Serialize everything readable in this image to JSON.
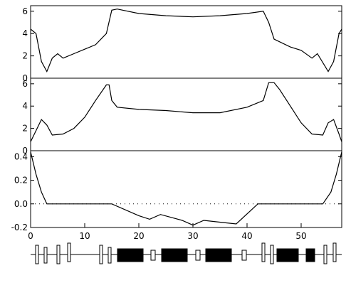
{
  "chart_data": [
    {
      "type": "line",
      "x": [
        0,
        1,
        2,
        3,
        4,
        5,
        6,
        8,
        10,
        12,
        14,
        15,
        16,
        20,
        25,
        30,
        35,
        40,
        43,
        44,
        45,
        48,
        50,
        52,
        53,
        55,
        56,
        57,
        57.5
      ],
      "values": [
        4.4,
        4,
        1.5,
        0.6,
        1.8,
        2.2,
        1.8,
        2.2,
        2.6,
        3,
        4,
        6.1,
        6.2,
        5.8,
        5.6,
        5.5,
        5.6,
        5.8,
        6,
        5,
        3.5,
        2.8,
        2.5,
        1.8,
        2.2,
        0.6,
        1.5,
        4,
        4.4
      ],
      "xlim": [
        0,
        57.5
      ],
      "ylim": [
        0,
        6.5
      ],
      "yticks": [
        0,
        2,
        4,
        6
      ],
      "color": "#000000"
    },
    {
      "type": "line",
      "x": [
        0,
        2,
        3,
        4,
        6,
        8,
        10,
        12,
        14,
        14.5,
        15,
        16,
        20,
        25,
        30,
        35,
        40,
        43,
        44,
        45,
        46,
        48,
        50,
        52,
        54,
        55,
        56,
        57,
        57.5
      ],
      "values": [
        0.8,
        2.8,
        2.3,
        1.4,
        1.5,
        2,
        3,
        4.5,
        5.9,
        5.9,
        4.5,
        3.9,
        3.7,
        3.6,
        3.4,
        3.4,
        3.9,
        4.5,
        6.1,
        6.1,
        5.5,
        4,
        2.5,
        1.5,
        1.4,
        2.5,
        2.8,
        1.5,
        0.8
      ],
      "xlim": [
        0,
        57.5
      ],
      "ylim": [
        0,
        6.5
      ],
      "yticks": [
        0,
        2,
        4,
        6
      ],
      "color": "#000000"
    },
    {
      "type": "line",
      "x": [
        0,
        1,
        2,
        3,
        15,
        20,
        22,
        24,
        28,
        30,
        32,
        36,
        38,
        42,
        54,
        55.5,
        56.5,
        57.5
      ],
      "values": [
        0.44,
        0.25,
        0.1,
        0,
        0,
        -0.1,
        -0.13,
        -0.09,
        -0.14,
        -0.18,
        -0.14,
        -0.16,
        -0.17,
        0,
        0,
        0.1,
        0.25,
        0.44
      ],
      "xlim": [
        0,
        57.5
      ],
      "ylim": [
        -0.2,
        0.45
      ],
      "yticks": [
        {
          "value": -0.2,
          "label": "-0.2"
        },
        {
          "value": 0,
          "label": "0.0"
        },
        {
          "value": 0.2,
          "label": "0.2"
        },
        {
          "value": 0.4,
          "label": "0.4"
        }
      ],
      "xticks": [
        0,
        10,
        20,
        30,
        40,
        50
      ],
      "color": "#000000"
    }
  ]
}
